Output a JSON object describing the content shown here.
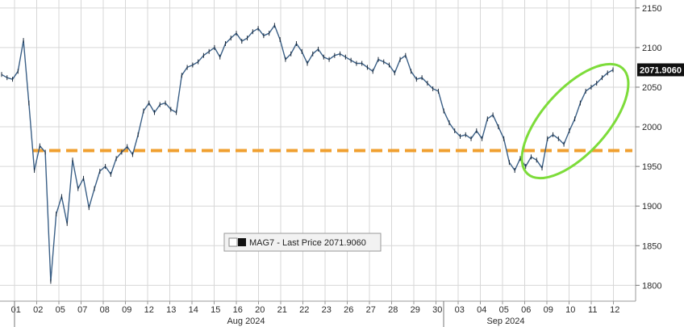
{
  "chart_data": {
    "type": "line",
    "series": [
      {
        "name": "MAG7 - Last Price",
        "color": "#3a5f86",
        "x": [
          "01",
          "01",
          "01",
          "01",
          "01",
          "02",
          "02",
          "02",
          "02",
          "05",
          "05",
          "05",
          "05",
          "07",
          "07",
          "07",
          "07",
          "08",
          "08",
          "08",
          "08",
          "09",
          "09",
          "09",
          "09",
          "12",
          "12",
          "12",
          "12",
          "13",
          "13",
          "13",
          "13",
          "14",
          "14",
          "14",
          "14",
          "15",
          "15",
          "15",
          "15",
          "16",
          "16",
          "16",
          "16",
          "20",
          "20",
          "20",
          "20",
          "21",
          "21",
          "21",
          "21",
          "22",
          "22",
          "22",
          "22",
          "23",
          "23",
          "23",
          "23",
          "26",
          "26",
          "26",
          "26",
          "27",
          "27",
          "27",
          "27",
          "28",
          "28",
          "28",
          "28",
          "29",
          "29",
          "29",
          "29",
          "30",
          "30",
          "30",
          "30",
          "03",
          "03",
          "03",
          "03",
          "04",
          "04",
          "04",
          "04",
          "05",
          "05",
          "05",
          "05",
          "06",
          "06",
          "06",
          "06",
          "09",
          "09",
          "09",
          "09",
          "10",
          "10",
          "10",
          "10",
          "11",
          "11",
          "11",
          "11",
          "12",
          "12",
          "12",
          "12"
        ],
        "values": [
          2066,
          2062,
          2060,
          2070,
          2109,
          2030,
          1945,
          1976,
          1968,
          1805,
          1890,
          1912,
          1878,
          1958,
          1922,
          1935,
          1898,
          1922,
          1944,
          1950,
          1940,
          1960,
          1968,
          1975,
          1965,
          1990,
          2020,
          2030,
          2018,
          2028,
          2030,
          2022,
          2018,
          2065,
          2075,
          2078,
          2082,
          2090,
          2095,
          2100,
          2088,
          2105,
          2112,
          2118,
          2108,
          2112,
          2120,
          2124,
          2115,
          2118,
          2128,
          2110,
          2085,
          2092,
          2105,
          2095,
          2080,
          2092,
          2098,
          2088,
          2085,
          2090,
          2092,
          2088,
          2084,
          2080,
          2080,
          2075,
          2070,
          2085,
          2082,
          2078,
          2068,
          2085,
          2090,
          2070,
          2060,
          2062,
          2055,
          2048,
          2045,
          2020,
          2005,
          1995,
          1988,
          1990,
          1985,
          1995,
          1985,
          2010,
          2015,
          2000,
          1985,
          1955,
          1945,
          1960,
          1950,
          1962,
          1958,
          1948,
          1985,
          1990,
          1985,
          1978,
          1995,
          2010,
          2030,
          2045,
          2050,
          2055,
          2062,
          2068,
          2071.906
        ]
      }
    ],
    "title": "",
    "xlabel": "",
    "ylabel": "",
    "x_tick_labels": [
      "01",
      "02",
      "05",
      "07",
      "08",
      "09",
      "12",
      "13",
      "14",
      "15",
      "16",
      "20",
      "21",
      "22",
      "23",
      "26",
      "27",
      "28",
      "29",
      "30",
      "03",
      "04",
      "05",
      "06",
      "09",
      "10",
      "11",
      "12"
    ],
    "month_labels": [
      "Aug 2024",
      "Sep 2024"
    ],
    "ylim": [
      1780,
      2160
    ],
    "y_ticks": [
      1800,
      1850,
      1900,
      1950,
      2000,
      2050,
      2100,
      2150
    ],
    "reference_line": {
      "value": 1970,
      "color": "#f0a030",
      "style": "dashed"
    },
    "highlight_ellipse": {
      "color": "#7ddc3a"
    },
    "last_price_label": "2071.9060",
    "legend": {
      "text": "MAG7 - Last Price 2071.9060",
      "placement": "bottom-center"
    },
    "grid": true,
    "y_axis_position": "right"
  }
}
